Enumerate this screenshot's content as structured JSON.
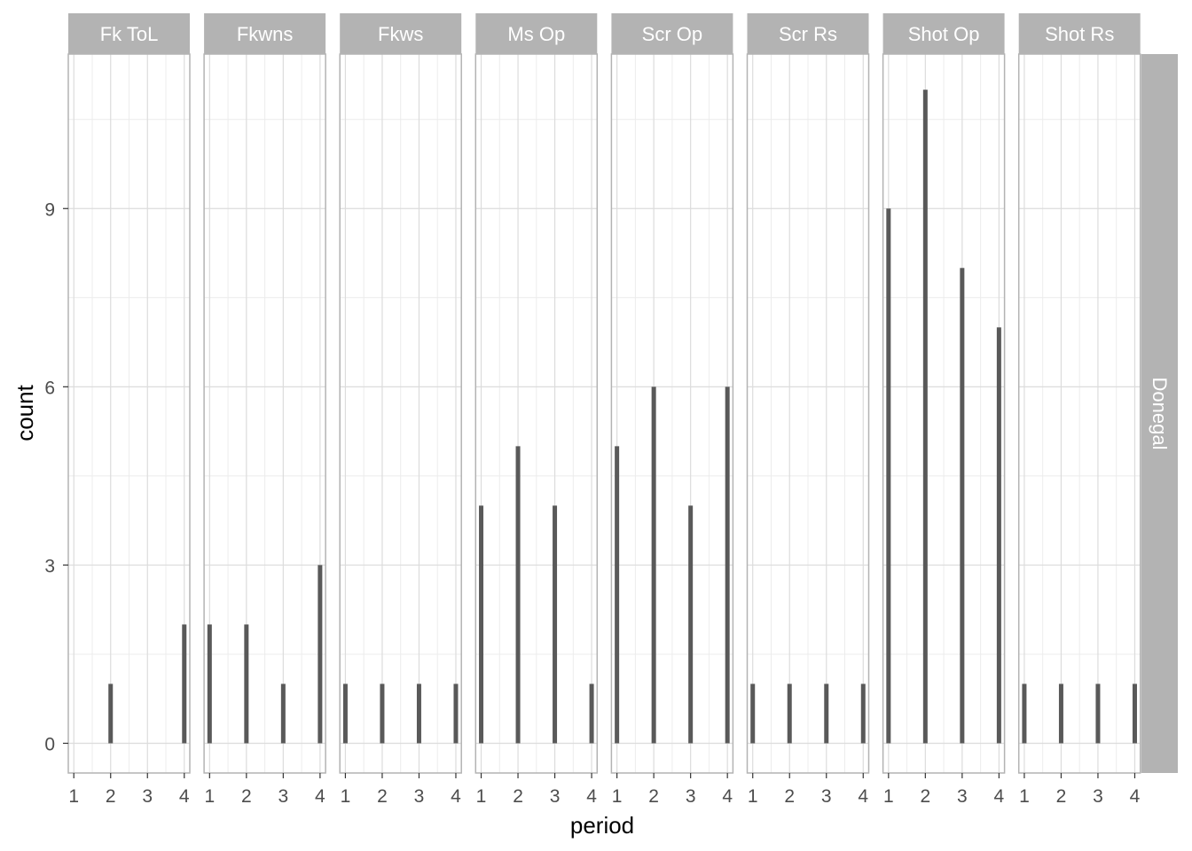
{
  "chart_data": {
    "type": "bar",
    "xlabel": "period",
    "ylabel": "count",
    "row_facet": "Donegal",
    "x_ticks": [
      1,
      2,
      3,
      4
    ],
    "y_ticks": [
      0,
      3,
      6,
      9
    ],
    "xlim": [
      0.85,
      4.15
    ],
    "ylim": [
      -0.5,
      11.6
    ],
    "grid": true,
    "bar_color": "#595959",
    "strip_color": "#b3b3b3",
    "facets": [
      {
        "name": "Fk ToL",
        "x": [
          2,
          4
        ],
        "values": [
          1,
          2
        ]
      },
      {
        "name": "Fkwns",
        "x": [
          1,
          2,
          3,
          4
        ],
        "values": [
          2,
          2,
          1,
          3
        ]
      },
      {
        "name": "Fkws",
        "x": [
          1,
          2,
          3,
          4
        ],
        "values": [
          1,
          1,
          1,
          1
        ]
      },
      {
        "name": "Ms Op",
        "x": [
          1,
          2,
          3,
          4
        ],
        "values": [
          4,
          5,
          4,
          1
        ]
      },
      {
        "name": "Scr Op",
        "x": [
          1,
          2,
          3,
          4
        ],
        "values": [
          5,
          6,
          4,
          6
        ]
      },
      {
        "name": "Scr Rs",
        "x": [
          1,
          2,
          3,
          4
        ],
        "values": [
          1,
          1,
          1,
          1
        ]
      },
      {
        "name": "Shot Op",
        "x": [
          1,
          2,
          3,
          4
        ],
        "values": [
          9,
          11,
          8,
          7
        ]
      },
      {
        "name": "Shot Rs",
        "x": [
          1,
          2,
          3,
          4
        ],
        "values": [
          1,
          1,
          1,
          1
        ]
      }
    ]
  }
}
